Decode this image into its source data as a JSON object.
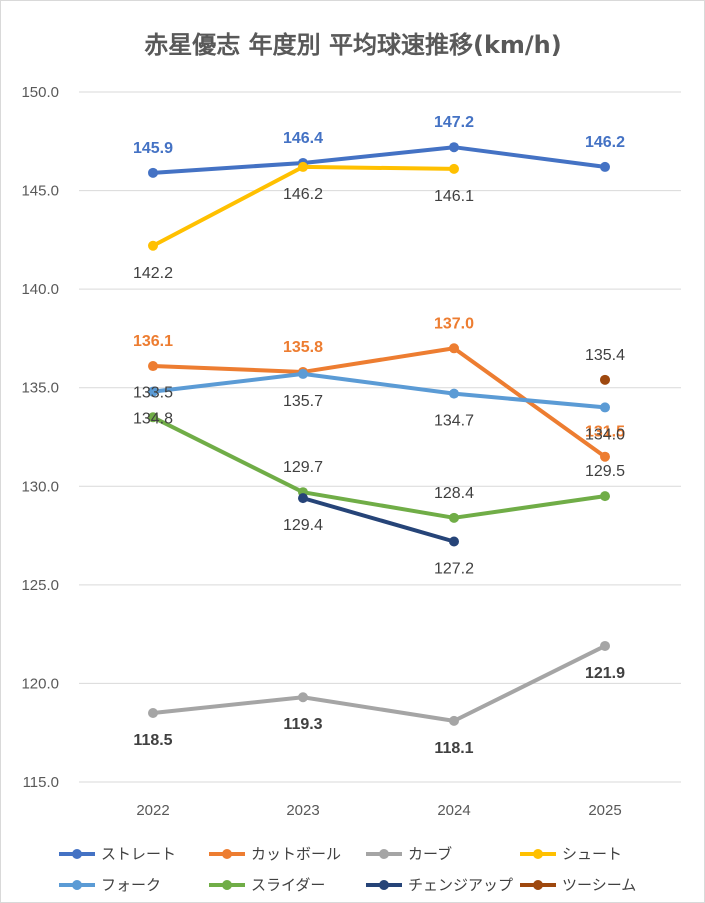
{
  "chart_data": {
    "type": "line",
    "title": "赤星優志 年度別 平均球速推移(km/h)",
    "xlabel": "",
    "ylabel": "",
    "categories": [
      "2022",
      "2023",
      "2024",
      "2025"
    ],
    "ylim": [
      115.0,
      150.0
    ],
    "yticks": [
      "115.0",
      "120.0",
      "125.0",
      "130.0",
      "135.0",
      "140.0",
      "145.0",
      "150.0"
    ],
    "grid": "horizontal",
    "legend_position": "bottom",
    "series": [
      {
        "name": "ストレート",
        "color": "#4472c4",
        "label_color": "#4472c4",
        "label_bold": true,
        "label_side": "above",
        "values": [
          145.9,
          146.4,
          147.2,
          146.2
        ],
        "labels": [
          "145.9",
          "146.4",
          "147.2",
          "146.2"
        ]
      },
      {
        "name": "カットボール",
        "color": "#ed7d31",
        "label_color": "#ed7d31",
        "label_bold": true,
        "label_side": "above",
        "values": [
          136.1,
          135.8,
          137.0,
          131.5
        ],
        "labels": [
          "136.1",
          "135.8",
          "137.0",
          "131.5"
        ]
      },
      {
        "name": "カーブ",
        "color": "#a5a5a5",
        "label_color": "#404040",
        "label_bold": true,
        "label_side": "below",
        "values": [
          118.5,
          119.3,
          118.1,
          121.9
        ],
        "labels": [
          "118.5",
          "119.3",
          "118.1",
          "121.9"
        ]
      },
      {
        "name": "シュート",
        "color": "#ffc000",
        "label_color": "#404040",
        "label_bold": false,
        "label_side": "below",
        "values": [
          142.2,
          146.2,
          146.1,
          null
        ],
        "labels": [
          "142.2",
          "146.2",
          "146.1",
          ""
        ]
      },
      {
        "name": "フォーク",
        "color": "#5b9bd5",
        "label_color": "#404040",
        "label_bold": false,
        "label_side": "below",
        "values": [
          134.8,
          135.7,
          134.7,
          134.0
        ],
        "labels": [
          "134.8",
          "135.7",
          "134.7",
          "134.0"
        ]
      },
      {
        "name": "スライダー",
        "color": "#70ad47",
        "label_color": "#404040",
        "label_bold": false,
        "label_side": "above",
        "values": [
          133.5,
          129.7,
          128.4,
          129.5
        ],
        "labels": [
          "133.5",
          "129.7",
          "128.4",
          "129.5"
        ]
      },
      {
        "name": "チェンジアップ",
        "color": "#264478",
        "label_color": "#404040",
        "label_bold": false,
        "label_side": "below",
        "values": [
          null,
          129.4,
          127.2,
          null
        ],
        "labels": [
          "",
          "129.4",
          "127.2",
          ""
        ]
      },
      {
        "name": "ツーシーム",
        "color": "#9e480e",
        "label_color": "#404040",
        "label_bold": false,
        "label_side": "above",
        "values": [
          null,
          null,
          null,
          135.4
        ],
        "labels": [
          "",
          "",
          "",
          "135.4"
        ]
      }
    ]
  }
}
